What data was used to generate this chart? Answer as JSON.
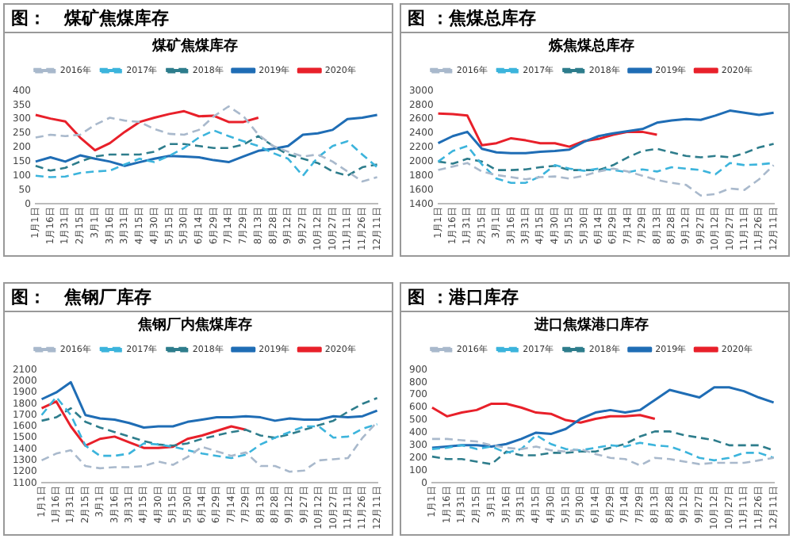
{
  "chart_data": [
    {
      "type": "line",
      "title": "图：   煤矿焦煤库存",
      "subtitle": "煤矿焦煤库存",
      "categories": [
        "1月1日",
        "1月16日",
        "1月31日",
        "2月15日",
        "3月1日",
        "3月16日",
        "3月31日",
        "4月15日",
        "4月30日",
        "5月15日",
        "5月30日",
        "6月14日",
        "6月29日",
        "7月14日",
        "7月29日",
        "8月13日",
        "8月28日",
        "9月12日",
        "9月27日",
        "10月12日",
        "10月27日",
        "11月11日",
        "11月26日",
        "12月11日"
      ],
      "ylim": [
        0,
        400
      ],
      "yticks": [
        0,
        50,
        100,
        150,
        200,
        250,
        300,
        350,
        400
      ],
      "grid": false,
      "legend": "top",
      "marker": "none",
      "series": [
        {
          "name": "2016年",
          "color": "#a9b9cc",
          "line_style": "dashed",
          "values": [
            235,
            245,
            240,
            245,
            280,
            305,
            295,
            290,
            265,
            248,
            245,
            262,
            310,
            345,
            310,
            245,
            205,
            185,
            168,
            175,
            150,
            115,
            80,
            95
          ]
        },
        {
          "name": "2017年",
          "color": "#3cb4dc",
          "line_style": "dashed",
          "values": [
            100,
            95,
            97,
            110,
            115,
            118,
            140,
            160,
            148,
            170,
            198,
            235,
            260,
            240,
            222,
            205,
            180,
            160,
            100,
            165,
            205,
            222,
            175,
            130
          ]
        },
        {
          "name": "2018年",
          "color": "#2e7d8c",
          "line_style": "dashed",
          "values": [
            135,
            118,
            128,
            150,
            168,
            175,
            175,
            175,
            185,
            212,
            212,
            205,
            198,
            198,
            210,
            240,
            205,
            175,
            160,
            145,
            115,
            100,
            130,
            140
          ]
        },
        {
          "name": "2019年",
          "color": "#1f6db5",
          "line_style": "solid",
          "values": [
            150,
            165,
            150,
            172,
            160,
            150,
            135,
            148,
            160,
            170,
            168,
            165,
            155,
            148,
            168,
            188,
            195,
            205,
            245,
            250,
            262,
            300,
            305,
            315
          ]
        },
        {
          "name": "2020年",
          "color": "#e8202a",
          "line_style": "solid",
          "values": [
            315,
            302,
            292,
            235,
            190,
            215,
            255,
            290,
            305,
            318,
            328,
            310,
            312,
            290,
            290,
            305,
            null,
            null,
            null,
            null,
            null,
            null,
            null,
            null
          ]
        }
      ]
    },
    {
      "type": "line",
      "title": "图 ：焦煤总库存",
      "subtitle": "炼焦煤总库存",
      "categories": [
        "1月1日",
        "1月16日",
        "1月31日",
        "2月15日",
        "3月1日",
        "3月16日",
        "3月31日",
        "4月15日",
        "4月30日",
        "5月15日",
        "5月30日",
        "6月14日",
        "6月29日",
        "7月14日",
        "7月29日",
        "8月13日",
        "8月28日",
        "9月12日",
        "9月27日",
        "10月12日",
        "10月27日",
        "11月11日",
        "11月26日",
        "12月11日"
      ],
      "ylim": [
        1400,
        3000
      ],
      "yticks": [
        1400,
        1600,
        1800,
        2000,
        2200,
        2400,
        2600,
        2800,
        3000
      ],
      "grid": false,
      "legend": "top",
      "marker": "none",
      "series": [
        {
          "name": "2016年",
          "color": "#a9b9cc",
          "line_style": "dashed",
          "values": [
            1880,
            1930,
            1980,
            1860,
            1810,
            1780,
            1750,
            1780,
            1790,
            1760,
            1800,
            1860,
            1900,
            1860,
            1800,
            1740,
            1700,
            1670,
            1520,
            1540,
            1620,
            1600,
            1750,
            1950
          ]
        },
        {
          "name": "2017年",
          "color": "#3cb4dc",
          "line_style": "dashed",
          "values": [
            2000,
            2150,
            2220,
            1960,
            1760,
            1700,
            1700,
            1790,
            1950,
            1900,
            1870,
            1900,
            1880,
            1850,
            1890,
            1860,
            1920,
            1900,
            1880,
            1820,
            1980,
            1950,
            1960,
            1980
          ]
        },
        {
          "name": "2018年",
          "color": "#2e7d8c",
          "line_style": "dashed",
          "values": [
            2000,
            1970,
            2040,
            2000,
            1880,
            1880,
            1890,
            1920,
            1940,
            1880,
            1880,
            1880,
            1950,
            2060,
            2150,
            2180,
            2130,
            2080,
            2060,
            2080,
            2060,
            2120,
            2200,
            2250
          ]
        },
        {
          "name": "2019年",
          "color": "#1f6db5",
          "line_style": "solid",
          "values": [
            2260,
            2360,
            2420,
            2180,
            2130,
            2120,
            2120,
            2140,
            2150,
            2170,
            2280,
            2360,
            2400,
            2430,
            2460,
            2550,
            2580,
            2600,
            2590,
            2650,
            2720,
            2690,
            2660,
            2690
          ]
        },
        {
          "name": "2020年",
          "color": "#e8202a",
          "line_style": "solid",
          "values": [
            2680,
            2670,
            2650,
            2230,
            2260,
            2330,
            2300,
            2260,
            2260,
            2210,
            2290,
            2320,
            2380,
            2420,
            2420,
            2380,
            null,
            null,
            null,
            null,
            null,
            null,
            null,
            null
          ]
        }
      ]
    },
    {
      "type": "line",
      "title": "图：   焦钢厂库存",
      "subtitle": "焦钢厂内焦煤库存",
      "categories": [
        "1月1日",
        "1月16日",
        "1月31日",
        "2月15日",
        "3月1日",
        "3月16日",
        "3月31日",
        "4月15日",
        "4月30日",
        "5月15日",
        "5月30日",
        "6月14日",
        "6月29日",
        "7月14日",
        "7月29日",
        "8月13日",
        "8月28日",
        "9月12日",
        "9月27日",
        "10月12日",
        "10月27日",
        "11月11日",
        "11月26日",
        "12月11日"
      ],
      "ylim": [
        1100,
        2100
      ],
      "yticks": [
        1100,
        1200,
        1300,
        1400,
        1500,
        1600,
        1700,
        1800,
        1900,
        2000,
        2100
      ],
      "grid": false,
      "legend": "top",
      "marker": "none",
      "series": [
        {
          "name": "2016年",
          "color": "#a9b9cc",
          "line_style": "dashed",
          "values": [
            1300,
            1360,
            1390,
            1250,
            1230,
            1240,
            1240,
            1250,
            1290,
            1260,
            1330,
            1420,
            1380,
            1340,
            1370,
            1250,
            1250,
            1200,
            1210,
            1300,
            1310,
            1320,
            1500,
            1640
          ]
        },
        {
          "name": "2017年",
          "color": "#3cb4dc",
          "line_style": "dashed",
          "values": [
            1700,
            1860,
            1700,
            1430,
            1340,
            1340,
            1360,
            1450,
            1440,
            1420,
            1390,
            1360,
            1340,
            1320,
            1350,
            1440,
            1500,
            1550,
            1600,
            1600,
            1500,
            1510,
            1580,
            1620
          ]
        },
        {
          "name": "2018年",
          "color": "#2e7d8c",
          "line_style": "dashed",
          "values": [
            1650,
            1680,
            1760,
            1640,
            1590,
            1550,
            1510,
            1470,
            1440,
            1430,
            1450,
            1490,
            1520,
            1550,
            1570,
            1520,
            1500,
            1530,
            1570,
            1610,
            1650,
            1730,
            1800,
            1850
          ]
        },
        {
          "name": "2019年",
          "color": "#1f6db5",
          "line_style": "solid",
          "values": [
            1840,
            1900,
            1990,
            1700,
            1670,
            1660,
            1630,
            1590,
            1600,
            1600,
            1640,
            1660,
            1680,
            1680,
            1690,
            1680,
            1650,
            1670,
            1660,
            1660,
            1690,
            1680,
            1690,
            1740
          ]
        },
        {
          "name": "2020年",
          "color": "#e8202a",
          "line_style": "solid",
          "values": [
            1760,
            1820,
            1600,
            1430,
            1490,
            1510,
            1460,
            1410,
            1410,
            1420,
            1490,
            1520,
            1560,
            1600,
            1570,
            null,
            null,
            null,
            null,
            null,
            null,
            null,
            null,
            null
          ]
        }
      ]
    },
    {
      "type": "line",
      "title": "图 ：港口库存",
      "subtitle": "进口焦煤港口库存",
      "categories": [
        "1月1日",
        "1月16日",
        "1月31日",
        "2月15日",
        "3月1日",
        "3月16日",
        "3月31日",
        "4月15日",
        "4月30日",
        "5月15日",
        "5月30日",
        "6月14日",
        "6月29日",
        "7月14日",
        "7月29日",
        "8月13日",
        "8月28日",
        "9月12日",
        "9月27日",
        "10月12日",
        "10月27日",
        "11月11日",
        "11月26日",
        "12月11日"
      ],
      "ylim": [
        0,
        900
      ],
      "yticks": [
        0,
        100,
        200,
        300,
        400,
        500,
        600,
        700,
        800,
        900
      ],
      "grid": false,
      "legend": "top",
      "marker": "none",
      "series": [
        {
          "name": "2016年",
          "color": "#a9b9cc",
          "line_style": "dashed",
          "values": [
            350,
            350,
            340,
            330,
            300,
            280,
            270,
            290,
            260,
            250,
            270,
            230,
            200,
            190,
            140,
            200,
            190,
            170,
            150,
            160,
            160,
            160,
            180,
            200
          ]
        },
        {
          "name": "2017年",
          "color": "#3cb4dc",
          "line_style": "dashed",
          "values": [
            270,
            280,
            300,
            270,
            290,
            240,
            270,
            380,
            310,
            270,
            260,
            280,
            300,
            290,
            320,
            300,
            290,
            250,
            200,
            180,
            200,
            240,
            240,
            200
          ]
        },
        {
          "name": "2018年",
          "color": "#2e7d8c",
          "line_style": "dashed",
          "values": [
            210,
            190,
            190,
            170,
            150,
            250,
            220,
            220,
            240,
            240,
            250,
            250,
            280,
            310,
            370,
            410,
            410,
            380,
            360,
            340,
            300,
            300,
            300,
            260
          ]
        },
        {
          "name": "2019年",
          "color": "#1f6db5",
          "line_style": "solid",
          "values": [
            280,
            290,
            300,
            300,
            290,
            310,
            350,
            400,
            390,
            430,
            510,
            560,
            580,
            560,
            580,
            660,
            740,
            710,
            680,
            760,
            760,
            730,
            680,
            640
          ]
        },
        {
          "name": "2020年",
          "color": "#e8202a",
          "line_style": "solid",
          "values": [
            600,
            530,
            560,
            580,
            630,
            630,
            600,
            560,
            550,
            500,
            480,
            510,
            530,
            530,
            540,
            510,
            null,
            null,
            null,
            null,
            null,
            null,
            null,
            null
          ]
        }
      ]
    }
  ]
}
